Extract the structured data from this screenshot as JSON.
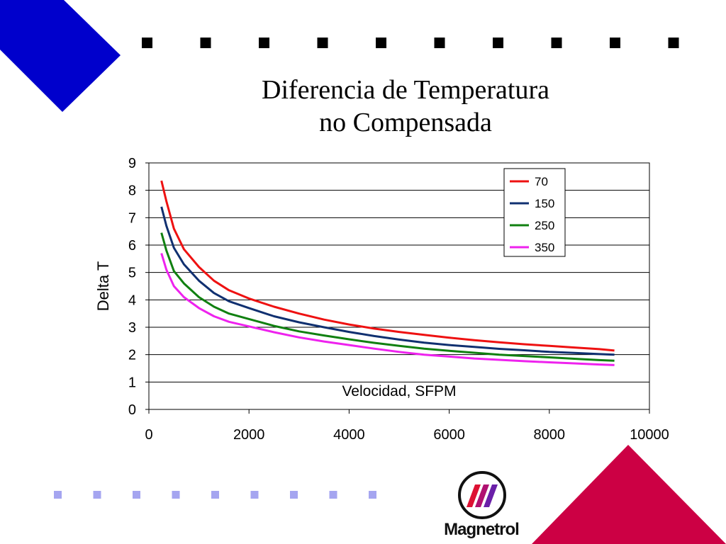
{
  "slide": {
    "title_line1": "Diferencia de Temperatura",
    "title_line2": "no Compensada",
    "logo_text": "Magnetrol",
    "colors": {
      "blue_triangle": "#0000cc",
      "red_triangle": "#cc0044",
      "top_squares": "#000000",
      "bottom_squares": "#a5a5f0"
    }
  },
  "chart_data": {
    "type": "line",
    "title": "",
    "xlabel": "Velocidad, SFPM",
    "ylabel": "Delta T",
    "xlim": [
      0,
      10000
    ],
    "ylim": [
      0,
      9
    ],
    "xticks": [
      0,
      2000,
      4000,
      6000,
      8000,
      10000
    ],
    "yticks": [
      0,
      1,
      2,
      3,
      4,
      5,
      6,
      7,
      8,
      9
    ],
    "grid": "horizontal",
    "legend_position": "top-right",
    "x": [
      250,
      350,
      500,
      700,
      1000,
      1300,
      1600,
      2000,
      2500,
      3000,
      3500,
      4000,
      4500,
      5000,
      5500,
      6000,
      6500,
      7000,
      7500,
      8000,
      8500,
      9000,
      9300
    ],
    "series": [
      {
        "name": "70",
        "color": "#ee1111",
        "values": [
          8.35,
          7.6,
          6.6,
          5.85,
          5.2,
          4.7,
          4.35,
          4.05,
          3.75,
          3.5,
          3.28,
          3.1,
          2.95,
          2.83,
          2.72,
          2.62,
          2.53,
          2.45,
          2.38,
          2.32,
          2.26,
          2.2,
          2.15
        ]
      },
      {
        "name": "150",
        "color": "#103070",
        "values": [
          7.4,
          6.7,
          5.9,
          5.3,
          4.7,
          4.25,
          3.95,
          3.7,
          3.4,
          3.18,
          3.0,
          2.83,
          2.68,
          2.55,
          2.44,
          2.35,
          2.28,
          2.21,
          2.16,
          2.1,
          2.06,
          2.02,
          2.0
        ]
      },
      {
        "name": "250",
        "color": "#108010",
        "values": [
          6.45,
          5.8,
          5.05,
          4.6,
          4.1,
          3.75,
          3.5,
          3.3,
          3.05,
          2.85,
          2.7,
          2.56,
          2.43,
          2.32,
          2.22,
          2.14,
          2.07,
          2.0,
          1.95,
          1.9,
          1.85,
          1.8,
          1.78
        ]
      },
      {
        "name": "350",
        "color": "#ee22ee",
        "values": [
          5.7,
          5.1,
          4.5,
          4.1,
          3.7,
          3.4,
          3.2,
          3.03,
          2.82,
          2.63,
          2.48,
          2.35,
          2.22,
          2.1,
          2.0,
          1.93,
          1.86,
          1.81,
          1.76,
          1.72,
          1.68,
          1.64,
          1.62
        ]
      }
    ]
  }
}
